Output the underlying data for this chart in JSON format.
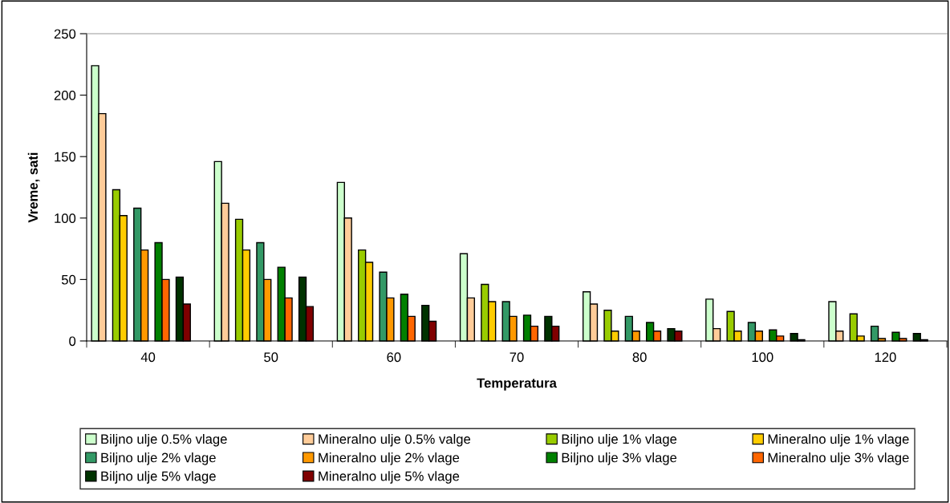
{
  "chart_data": {
    "type": "bar",
    "xlabel": "Temperatura",
    "ylabel": "Vreme, sati",
    "categories": [
      "40",
      "50",
      "60",
      "70",
      "80",
      "100",
      "120"
    ],
    "series": [
      {
        "name": "Biljno ulje 0.5% vlage",
        "color": "#ccffcc",
        "values": [
          224,
          146,
          129,
          71,
          40,
          34,
          32
        ]
      },
      {
        "name": "Mineralno ulje 0.5% valge",
        "color": "#ffcc99",
        "values": [
          185,
          112,
          100,
          35,
          30,
          10,
          8
        ]
      },
      {
        "name": "Biljno ulje 1% vlage",
        "color": "#99cc00",
        "values": [
          123,
          99,
          74,
          46,
          25,
          24,
          22
        ]
      },
      {
        "name": "Mineralno ulje 1% vlage",
        "color": "#ffcc00",
        "values": [
          102,
          74,
          64,
          32,
          8,
          8,
          4
        ]
      },
      {
        "name": "Biljno ulje 2% vlage",
        "color": "#339966",
        "values": [
          108,
          80,
          56,
          32,
          20,
          15,
          12
        ]
      },
      {
        "name": "Mineralno ulje 2% vlage",
        "color": "#ff9900",
        "values": [
          74,
          50,
          35,
          20,
          8,
          8,
          2
        ]
      },
      {
        "name": "Biljno ulje 3% vlage",
        "color": "#008000",
        "values": [
          80,
          60,
          38,
          21,
          15,
          9,
          7
        ]
      },
      {
        "name": "Mineralno ulje 3% vlage",
        "color": "#ff6600",
        "values": [
          50,
          35,
          20,
          12,
          8,
          4,
          2
        ]
      },
      {
        "name": "Biljno ulje 5% vlage",
        "color": "#003300",
        "values": [
          52,
          52,
          29,
          20,
          10,
          6,
          6
        ]
      },
      {
        "name": "Mineralno ulje 5% vlage",
        "color": "#800000",
        "values": [
          30,
          28,
          16,
          12,
          8,
          1,
          1
        ]
      }
    ],
    "ylim": [
      0,
      250
    ],
    "yticks": [
      0,
      50,
      100,
      150,
      200,
      250
    ],
    "grid": false,
    "legend": "bottom"
  }
}
